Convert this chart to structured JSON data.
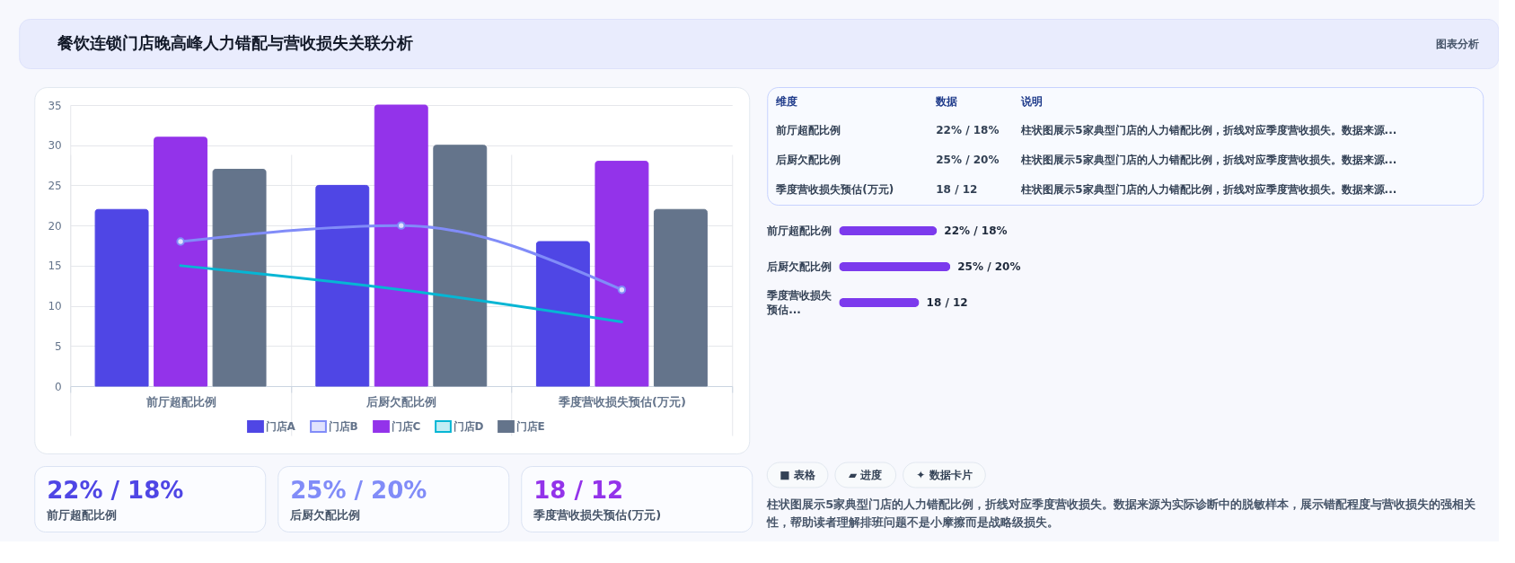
{
  "chart_data": [
    {
      "type": "other",
      "title": "餐饮连锁门店晚高峰人力错配与营收损失关联分析",
      "annotations": [
        "图表分析"
      ]
    },
    {
      "type": "bar",
      "categories": [
        "前厅超配比例",
        "后厨欠配比例",
        "季度营收损失预估(万元)"
      ],
      "series": [
        {
          "name": "门店A",
          "color": "#4f46e5",
          "values": [
            22,
            25,
            18
          ]
        },
        {
          "name": "门店B",
          "type": "line",
          "color": "#818cf8",
          "values": [
            18,
            20,
            12
          ],
          "marker": "circle"
        },
        {
          "name": "门店C",
          "color": "#9333ea",
          "values": [
            31,
            35,
            28
          ]
        },
        {
          "name": "门店D",
          "type": "line",
          "color": "#06b6d4",
          "values": [
            15,
            12,
            8
          ],
          "marker": "none"
        },
        {
          "name": "门店E",
          "color": "#64748b",
          "values": [
            27,
            30,
            22
          ]
        }
      ],
      "ylim": [
        0,
        35
      ],
      "yticks": [
        0,
        5,
        10,
        15,
        20,
        25,
        30,
        35
      ],
      "grid": true,
      "legend": "bottom"
    },
    {
      "type": "other",
      "annotations": [
        "维度",
        "数据",
        "说明",
        "前厅超配比例",
        "22% / 18%",
        "柱状图展示5家典型门店的人力错配比例，折线对应季度营收损失。数据来源...",
        "后厨欠配比例",
        "25% / 20%",
        "柱状图展示5家典型门店的人力错配比例，折线对应季度营收损失。数据来源...",
        "季度营收损失预估(万元)",
        "18 / 12",
        "柱状图展示5家典型门店的人力错配比例，折线对应季度营收损失。数据来源..."
      ]
    },
    {
      "type": "bar",
      "orientation": "horizontal",
      "categories": [
        "前厅超配比例",
        "后厨欠配比例",
        "季度营收损失预估..."
      ],
      "values": [
        22,
        25,
        18
      ],
      "value_labels": [
        "22% / 18%",
        "25% / 20%",
        null
      ],
      "color": "#7c3aed",
      "annotations": [
        {
          "text": "18 / 12",
          "x": 18,
          "y": "季度营收损失预估..."
        }
      ]
    },
    {
      "type": "other",
      "annotations": [
        "22% / 18%",
        "前厅超配比例",
        "25% / 20%",
        "后厨欠配比例",
        "18 / 12",
        "季度营收损失预估(万元)"
      ],
      "colors": [
        "#4f46e5",
        "#818cf8",
        "#9333ea"
      ]
    },
    {
      "type": "other",
      "annotations": [
        "■ 表格",
        "▰ 进度",
        "✦ 数据卡片",
        "柱状图展示5家典型门店的人力错配比例，折线对应季度营收损失。数据来源为实际诊断中的脱敏样本，展示错配程度与营收损失的强相关性，帮助读者理解排班问题不是小摩擦而是战略级损失。"
      ]
    }
  ]
}
